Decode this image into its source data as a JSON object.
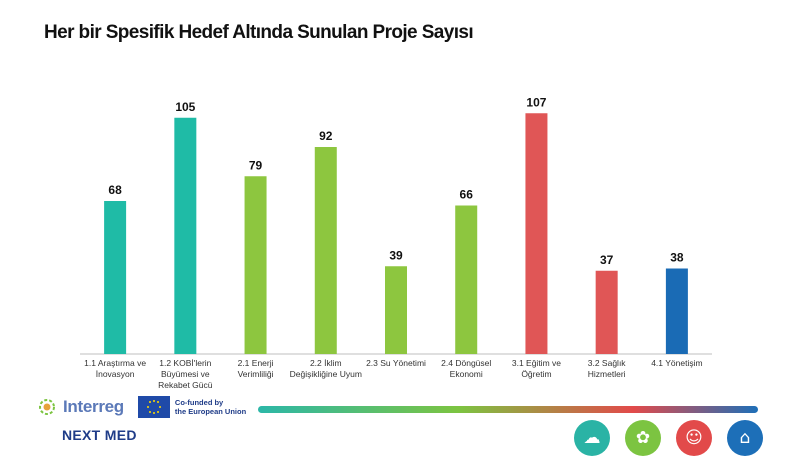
{
  "title": "Her bir Spesifik Hedef Altında Sunulan Proje Sayısı",
  "chart_data": {
    "type": "bar",
    "title": "Her bir Spesifik Hedef Altında Sunulan Proje Sayısı",
    "categories": [
      [
        "1.1 Araştırma ve",
        "İnovasyon"
      ],
      [
        "1.2 KOBİ'lerin",
        "Büyümesi ve",
        "Rekabet Gücü"
      ],
      [
        "2.1 Enerji",
        "Verimliliği"
      ],
      [
        "2.2 İklim",
        "Değişikliğine Uyum"
      ],
      [
        "2.3 Su Yönetimi"
      ],
      [
        "2.4 Döngüsel",
        "Ekonomi"
      ],
      [
        "3.1 Eğitim ve",
        "Öğretim"
      ],
      [
        "3.2 Sağlık",
        "Hizmetleri"
      ],
      [
        "4.1 Yönetişim"
      ]
    ],
    "values": [
      68,
      105,
      79,
      92,
      39,
      66,
      107,
      37,
      38
    ],
    "colors": [
      "#1fbba6",
      "#1fbba6",
      "#8dc63f",
      "#8dc63f",
      "#8dc63f",
      "#8dc63f",
      "#e05656",
      "#e05656",
      "#1a6bb5"
    ],
    "ylim": [
      0,
      120
    ],
    "xlabel": "",
    "ylabel": "",
    "grid": false
  },
  "footer": {
    "brand": "Interreg",
    "cofunded_line1": "Co-funded by",
    "cofunded_line2": "the European Union",
    "program": "NEXT MED",
    "theme_colors": [
      "#2ab3a5",
      "#7cc441",
      "#e24a4a",
      "#1d6fb8"
    ],
    "theme_icons": [
      "cloud-circuit-icon",
      "plant-energy-icon",
      "people-icon",
      "city-icon"
    ]
  }
}
